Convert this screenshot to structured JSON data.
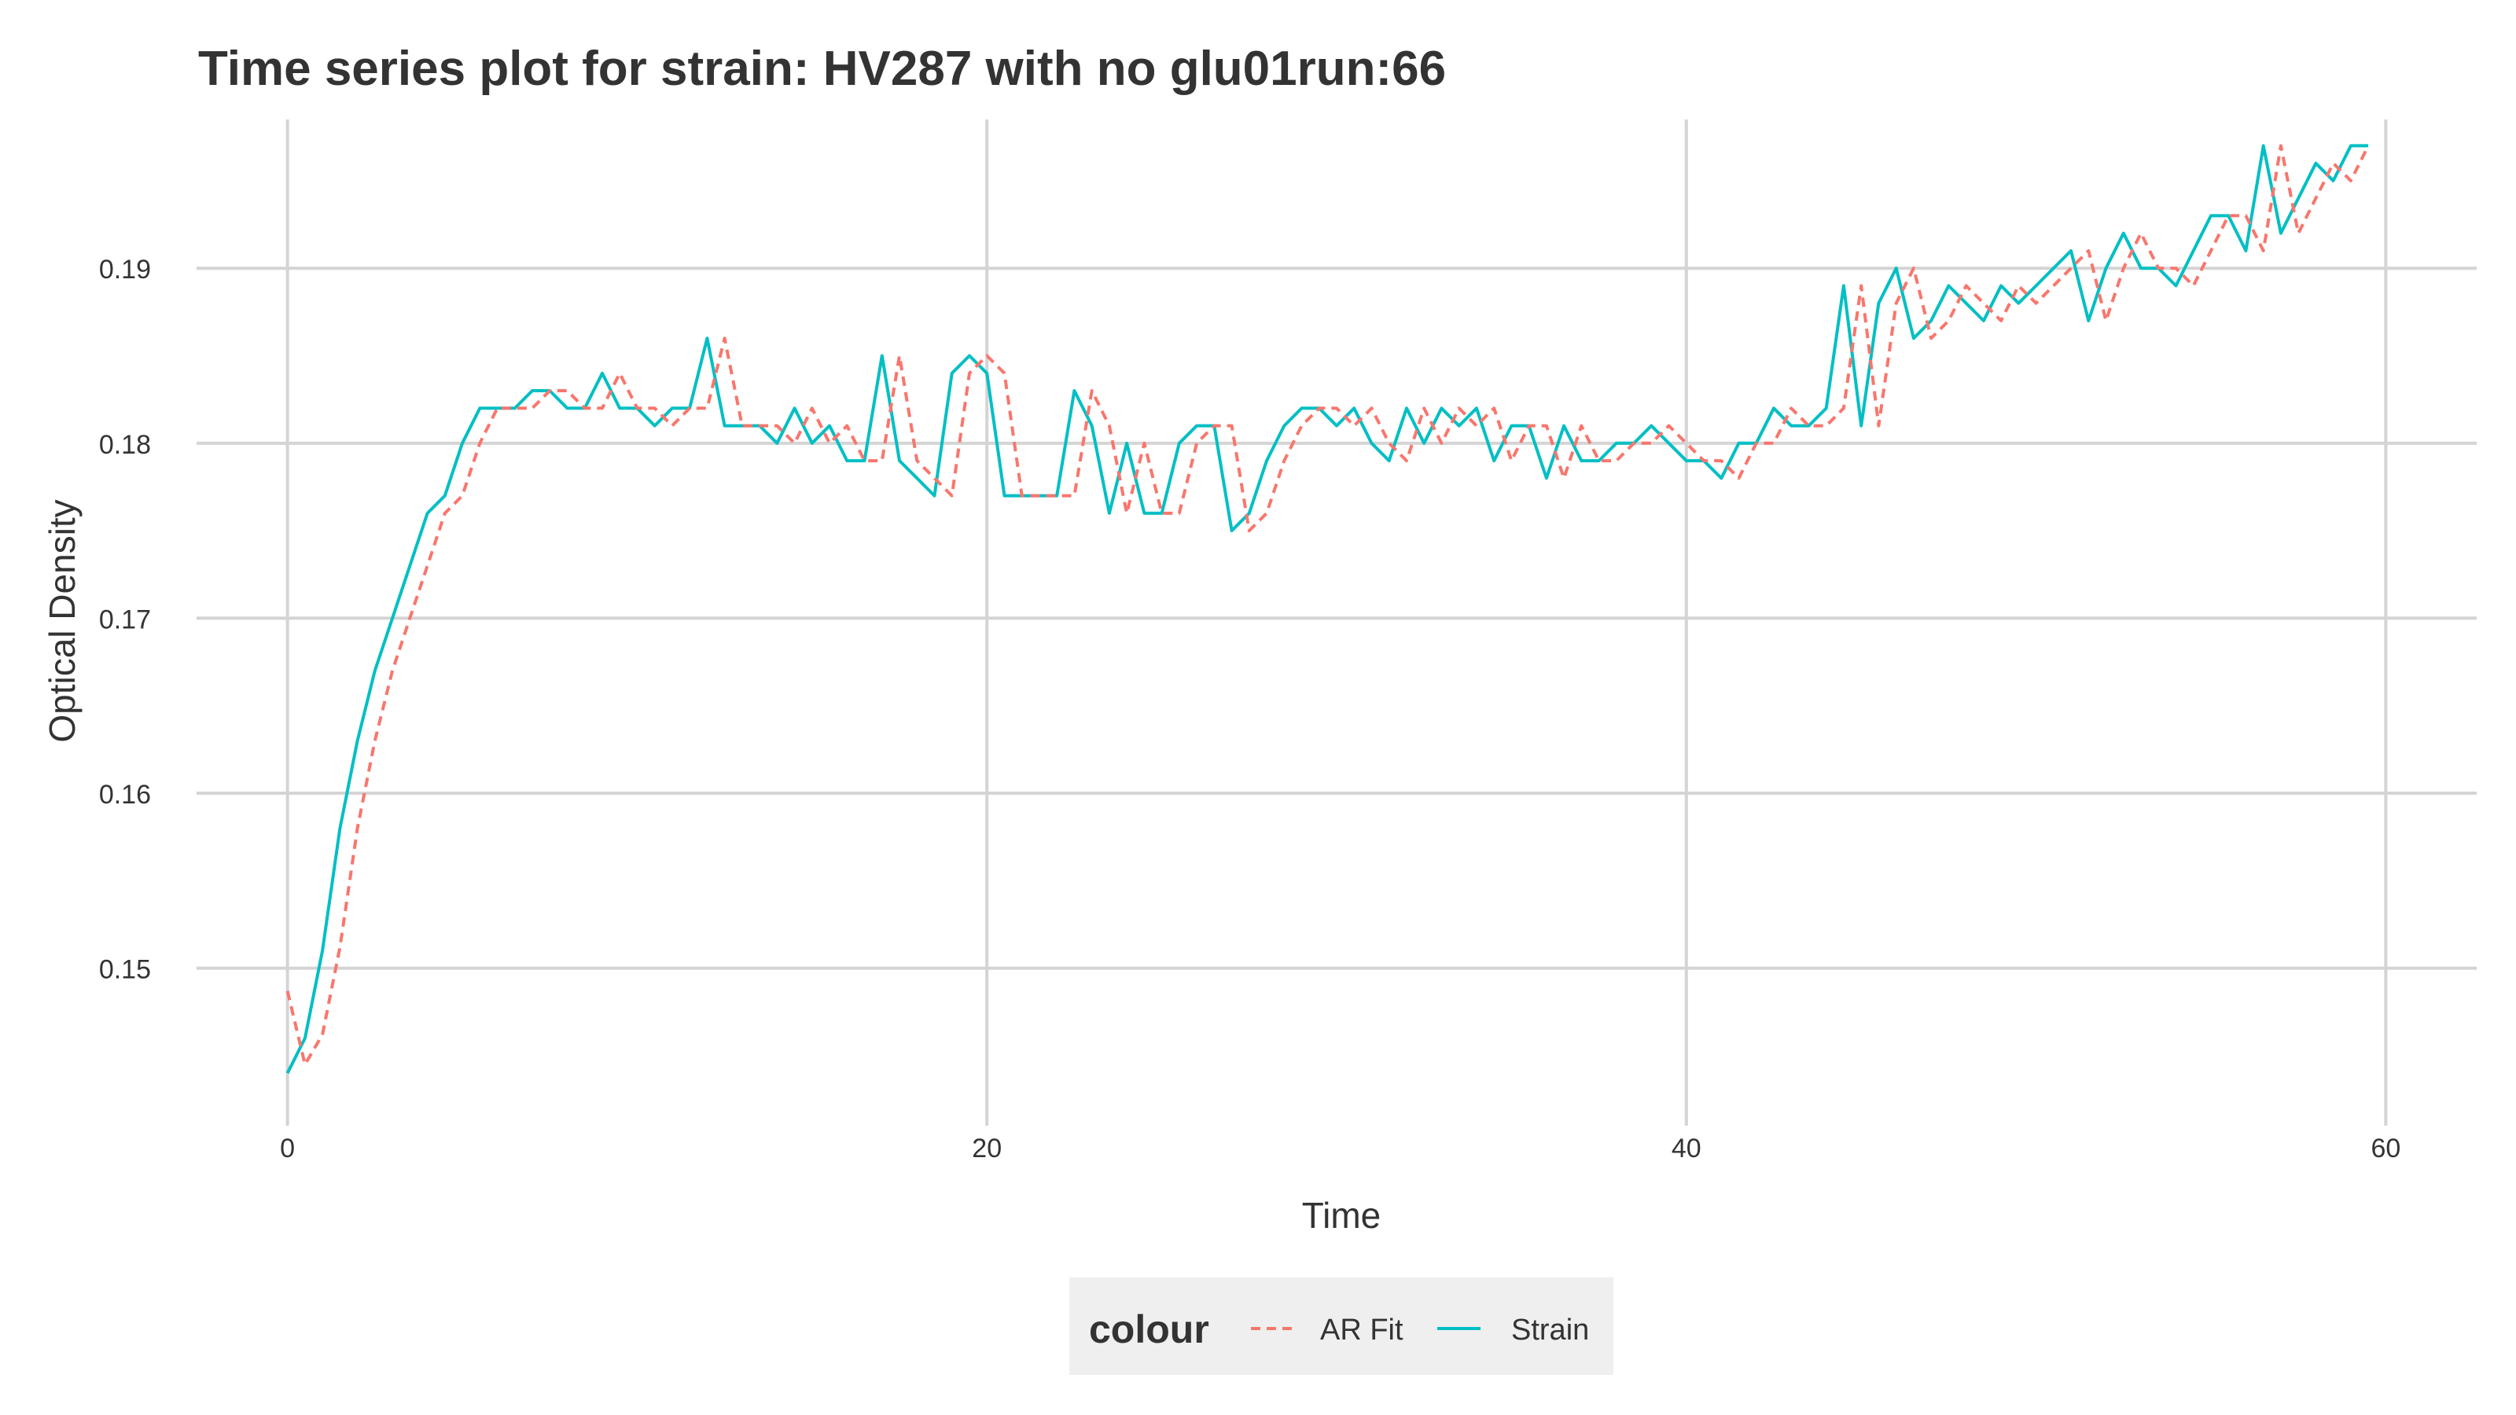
{
  "chart_data": {
    "type": "line",
    "title": "Time series plot for strain: HV287 with no glu01run:66",
    "xlabel": "Time",
    "ylabel": "Optical Density",
    "xlim": [
      -2.6,
      62.6
    ],
    "ylim": [
      0.141,
      0.1985
    ],
    "x_ticks": [
      0,
      20,
      40,
      60
    ],
    "x_tick_labels": [
      "0",
      "20",
      "40",
      "60"
    ],
    "y_ticks": [
      0.15,
      0.16,
      0.17,
      0.18,
      0.19
    ],
    "y_tick_labels": [
      "0.15",
      "0.16",
      "0.17",
      "0.18",
      "0.19"
    ],
    "grid": true,
    "legend": {
      "position": "bottom",
      "title": "colour",
      "entries": [
        {
          "label": "AR Fit",
          "color": "#F8766D",
          "dash": true
        },
        {
          "label": "Strain",
          "color": "#00BFC4",
          "dash": false
        }
      ]
    },
    "series": [
      {
        "name": "Strain",
        "color": "#00BFC4",
        "x": [
          0,
          0.5,
          1,
          1.5,
          2,
          2.5,
          3,
          3.5,
          4,
          4.5,
          5,
          5.5,
          6,
          6.5,
          7,
          7.5,
          8,
          8.5,
          9,
          9.5,
          10,
          10.5,
          11,
          11.5,
          12,
          12.5,
          13,
          13.5,
          14,
          14.5,
          15,
          15.5,
          16,
          16.5,
          17,
          17.5,
          18,
          18.5,
          19,
          19.5,
          20,
          20.5,
          21,
          21.5,
          22,
          22.5,
          23,
          23.5,
          24,
          24.5,
          25,
          25.5,
          26,
          26.5,
          27,
          27.5,
          28,
          28.5,
          29,
          29.5,
          30,
          30.5,
          31,
          31.5,
          32,
          32.5,
          33,
          33.5,
          34,
          34.5,
          35,
          35.5,
          36,
          36.5,
          37,
          37.5,
          38,
          38.5,
          39,
          39.5,
          40,
          40.5,
          41,
          41.5,
          42,
          42.5,
          43,
          43.5,
          44,
          44.5,
          45,
          45.5,
          46,
          46.5,
          47,
          47.5,
          48,
          48.5,
          49,
          49.5,
          50,
          50.5,
          51,
          51.5,
          52,
          52.5,
          53,
          53.5,
          54,
          54.5,
          55,
          55.5,
          56,
          56.5,
          57,
          57.5,
          58,
          58.5,
          59,
          59.5
        ],
        "y": [
          0.144,
          0.146,
          0.151,
          0.158,
          0.163,
          0.167,
          0.17,
          0.173,
          0.176,
          0.177,
          0.18,
          0.182,
          0.182,
          0.182,
          0.183,
          0.183,
          0.182,
          0.182,
          0.184,
          0.182,
          0.182,
          0.181,
          0.182,
          0.182,
          0.186,
          0.181,
          0.181,
          0.181,
          0.18,
          0.182,
          0.18,
          0.181,
          0.179,
          0.179,
          0.185,
          0.179,
          0.178,
          0.177,
          0.184,
          0.185,
          0.184,
          0.177,
          0.177,
          0.177,
          0.177,
          0.183,
          0.181,
          0.176,
          0.18,
          0.176,
          0.176,
          0.18,
          0.181,
          0.181,
          0.175,
          0.176,
          0.179,
          0.181,
          0.182,
          0.182,
          0.181,
          0.182,
          0.18,
          0.179,
          0.182,
          0.18,
          0.182,
          0.181,
          0.182,
          0.179,
          0.181,
          0.181,
          0.178,
          0.181,
          0.179,
          0.179,
          0.18,
          0.18,
          0.181,
          0.18,
          0.179,
          0.179,
          0.178,
          0.18,
          0.18,
          0.182,
          0.181,
          0.181,
          0.182,
          0.189,
          0.181,
          0.188,
          0.19,
          0.186,
          0.187,
          0.189,
          0.188,
          0.187,
          0.189,
          0.188,
          0.189,
          0.19,
          0.191,
          0.187,
          0.19,
          0.192,
          0.19,
          0.19,
          0.189,
          0.191,
          0.193,
          0.193,
          0.191,
          0.197,
          0.192,
          0.194,
          0.196,
          0.195,
          0.197,
          0.197
        ]
      },
      {
        "name": "AR Fit",
        "color": "#F8766D",
        "x": [
          0,
          0.5,
          1,
          1.5,
          2,
          2.5,
          3,
          3.5,
          4,
          4.5,
          5,
          5.5,
          6,
          6.5,
          7,
          7.5,
          8,
          8.5,
          9,
          9.5,
          10,
          10.5,
          11,
          11.5,
          12,
          12.5,
          13,
          13.5,
          14,
          14.5,
          15,
          15.5,
          16,
          16.5,
          17,
          17.5,
          18,
          18.5,
          19,
          19.5,
          20,
          20.5,
          21,
          21.5,
          22,
          22.5,
          23,
          23.5,
          24,
          24.5,
          25,
          25.5,
          26,
          26.5,
          27,
          27.5,
          28,
          28.5,
          29,
          29.5,
          30,
          30.5,
          31,
          31.5,
          32,
          32.5,
          33,
          33.5,
          34,
          34.5,
          35,
          35.5,
          36,
          36.5,
          37,
          37.5,
          38,
          38.5,
          39,
          39.5,
          40,
          40.5,
          41,
          41.5,
          42,
          42.5,
          43,
          43.5,
          44,
          44.5,
          45,
          45.5,
          46,
          46.5,
          47,
          47.5,
          48,
          48.5,
          49,
          49.5,
          50,
          50.5,
          51,
          51.5,
          52,
          52.5,
          53,
          53.5,
          54,
          54.5,
          55,
          55.5,
          56,
          56.5,
          57,
          57.5,
          58,
          58.5,
          59,
          59.5
        ],
        "y": [
          0.1487,
          0.1445,
          0.1462,
          0.1512,
          0.158,
          0.163,
          0.167,
          0.17,
          0.173,
          0.176,
          0.177,
          0.18,
          0.182,
          0.182,
          0.182,
          0.183,
          0.183,
          0.182,
          0.182,
          0.184,
          0.182,
          0.182,
          0.181,
          0.182,
          0.182,
          0.186,
          0.181,
          0.181,
          0.181,
          0.18,
          0.182,
          0.18,
          0.181,
          0.179,
          0.179,
          0.185,
          0.179,
          0.178,
          0.177,
          0.184,
          0.185,
          0.184,
          0.177,
          0.177,
          0.177,
          0.177,
          0.183,
          0.181,
          0.176,
          0.18,
          0.176,
          0.176,
          0.18,
          0.181,
          0.181,
          0.175,
          0.176,
          0.179,
          0.181,
          0.182,
          0.182,
          0.181,
          0.182,
          0.18,
          0.179,
          0.182,
          0.18,
          0.182,
          0.181,
          0.182,
          0.179,
          0.181,
          0.181,
          0.178,
          0.181,
          0.179,
          0.179,
          0.18,
          0.18,
          0.181,
          0.18,
          0.179,
          0.179,
          0.178,
          0.18,
          0.18,
          0.182,
          0.181,
          0.181,
          0.182,
          0.189,
          0.181,
          0.188,
          0.19,
          0.186,
          0.187,
          0.189,
          0.188,
          0.187,
          0.189,
          0.188,
          0.189,
          0.19,
          0.191,
          0.187,
          0.19,
          0.192,
          0.19,
          0.19,
          0.189,
          0.191,
          0.193,
          0.193,
          0.191,
          0.197,
          0.192,
          0.194,
          0.196,
          0.195,
          0.197
        ]
      }
    ]
  }
}
